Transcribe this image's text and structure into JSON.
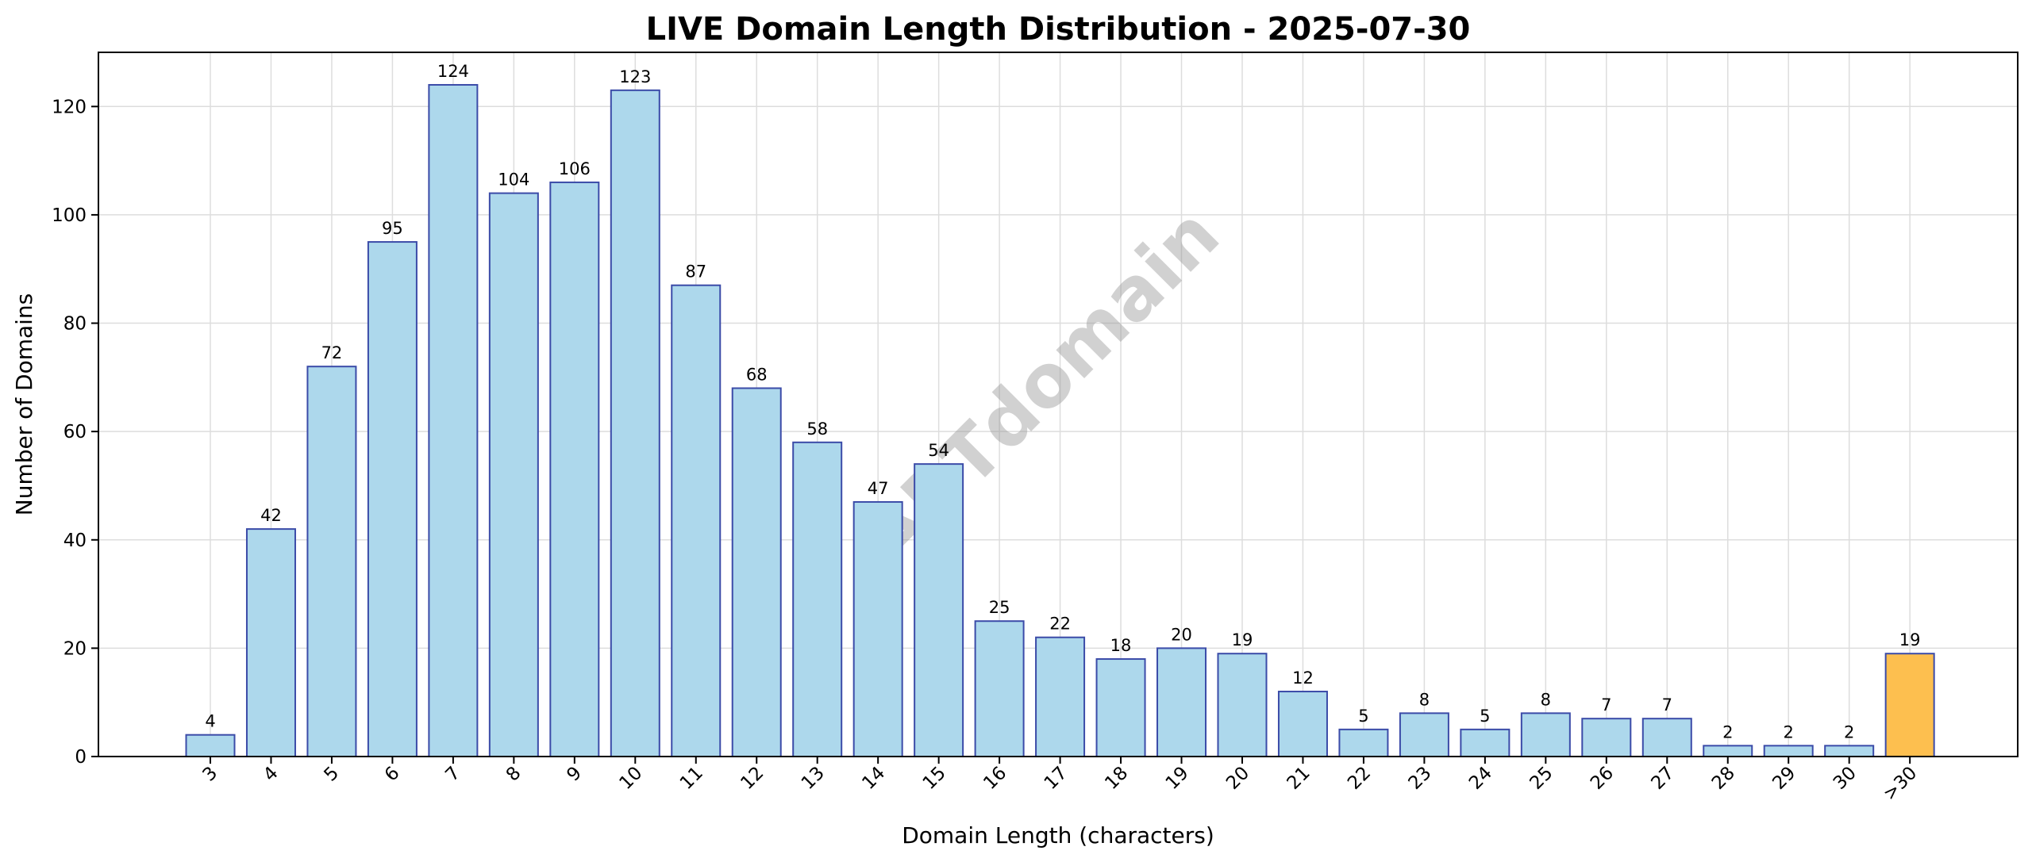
{
  "chart_data": {
    "type": "bar",
    "title": "LIVE Domain Length Distribution - 2025-07-30",
    "xlabel": "Domain Length (characters)",
    "ylabel": "Number of Domains",
    "categories": [
      "3",
      "4",
      "5",
      "6",
      "7",
      "8",
      "9",
      "10",
      "11",
      "12",
      "13",
      "14",
      "15",
      "16",
      "17",
      "18",
      "19",
      "20",
      "21",
      "22",
      "23",
      "24",
      "25",
      "26",
      "27",
      "28",
      "29",
      "30",
      ">30"
    ],
    "values": [
      4,
      42,
      72,
      95,
      124,
      104,
      106,
      123,
      87,
      68,
      58,
      47,
      54,
      25,
      22,
      18,
      20,
      19,
      12,
      5,
      8,
      5,
      8,
      7,
      7,
      2,
      2,
      2,
      19
    ],
    "highlight_category": ">30",
    "ylim": [
      0,
      130
    ],
    "yticks": [
      0,
      20,
      40,
      60,
      80,
      100,
      120
    ],
    "grid": true,
    "watermark": "ABTdomain",
    "colors": {
      "bar_fill": "#add8ec",
      "bar_edge": "#3b4ba8",
      "highlight_fill": "#fdbf4f",
      "grid": "#dddddd"
    }
  }
}
